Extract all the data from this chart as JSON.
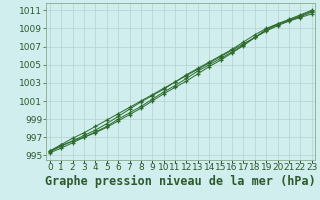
{
  "title": "Graphe pression niveau de la mer (hPa)",
  "background_color": "#d0eeee",
  "plot_bg_color": "#d0eeee",
  "grid_color": "#b8d0d0",
  "line_color": "#2d6b2d",
  "marker_color": "#2d6b2d",
  "x_labels": [
    "0",
    "1",
    "2",
    "3",
    "4",
    "5",
    "6",
    "7",
    "8",
    "9",
    "10",
    "11",
    "12",
    "13",
    "14",
    "15",
    "16",
    "17",
    "18",
    "19",
    "20",
    "21",
    "22",
    "23"
  ],
  "ylim": [
    994.5,
    1011.8
  ],
  "xlim": [
    -0.3,
    23.3
  ],
  "yticks": [
    995,
    997,
    999,
    1001,
    1003,
    1005,
    1007,
    1009,
    1011
  ],
  "series": [
    [
      995.5,
      996.1,
      996.6,
      997.0,
      997.5,
      998.1,
      998.8,
      999.5,
      1000.2,
      1001.0,
      1001.8,
      1002.5,
      1003.2,
      1004.0,
      1004.8,
      1005.5,
      1006.3,
      1007.1,
      1008.0,
      1008.9,
      1009.5,
      1010.0,
      1010.5,
      1011.0
    ],
    [
      995.4,
      996.0,
      996.6,
      997.2,
      997.8,
      998.5,
      999.3,
      1000.1,
      1000.9,
      1001.6,
      1002.3,
      1003.1,
      1003.9,
      1004.6,
      1005.3,
      1006.0,
      1006.7,
      1007.5,
      1008.3,
      1009.0,
      1009.5,
      1009.9,
      1010.3,
      1010.8
    ],
    [
      995.5,
      996.2,
      996.9,
      997.5,
      998.2,
      998.9,
      999.6,
      1000.3,
      1001.0,
      1001.7,
      1002.4,
      1003.1,
      1003.8,
      1004.5,
      1005.2,
      1005.9,
      1006.6,
      1007.3,
      1008.0,
      1008.7,
      1009.3,
      1009.8,
      1010.2,
      1010.6
    ],
    [
      995.3,
      995.8,
      996.4,
      997.0,
      997.6,
      998.2,
      999.0,
      999.7,
      1000.4,
      1001.2,
      1002.0,
      1002.7,
      1003.5,
      1004.3,
      1005.0,
      1005.7,
      1006.4,
      1007.2,
      1008.0,
      1008.8,
      1009.4,
      1009.9,
      1010.4,
      1010.9
    ]
  ],
  "title_fontsize": 8.5,
  "tick_fontsize": 6.5,
  "label_color": "#2d5a2d",
  "spine_color": "#8aaa8a"
}
